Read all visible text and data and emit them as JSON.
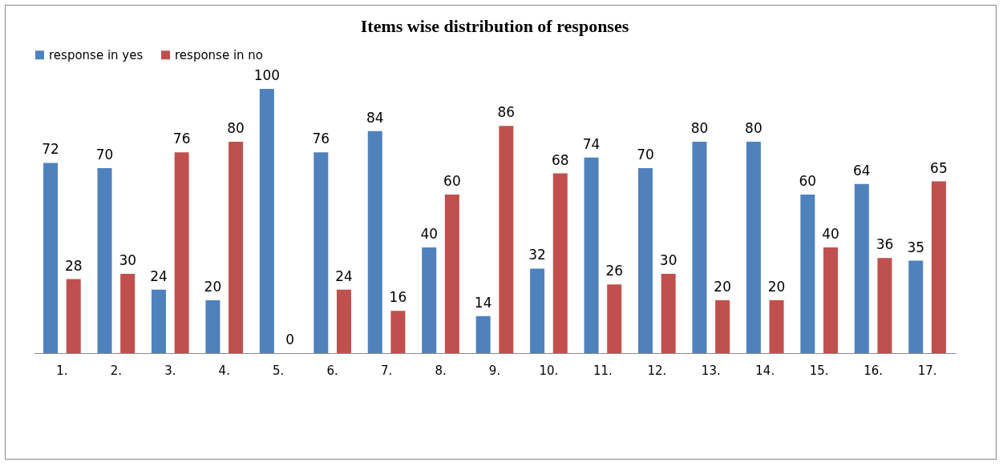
{
  "chart_data": {
    "type": "bar",
    "title": "Items wise distribution of responses",
    "categories": [
      "1.",
      "2.",
      "3.",
      "4.",
      "5.",
      "6.",
      "7.",
      "8.",
      "9.",
      "10.",
      "11.",
      "12.",
      "13.",
      "14.",
      "15.",
      "16.",
      "17."
    ],
    "series": [
      {
        "name": "response in yes",
        "color": "#4f81bd",
        "values": [
          72,
          70,
          24,
          20,
          100,
          76,
          84,
          40,
          14,
          32,
          74,
          70,
          80,
          80,
          60,
          64,
          35
        ]
      },
      {
        "name": "response in no",
        "color": "#c0504d",
        "values": [
          28,
          30,
          76,
          80,
          0,
          24,
          16,
          60,
          86,
          68,
          26,
          30,
          20,
          20,
          40,
          36,
          65
        ]
      }
    ],
    "data_labels": true,
    "legend": "top",
    "grid": false
  }
}
